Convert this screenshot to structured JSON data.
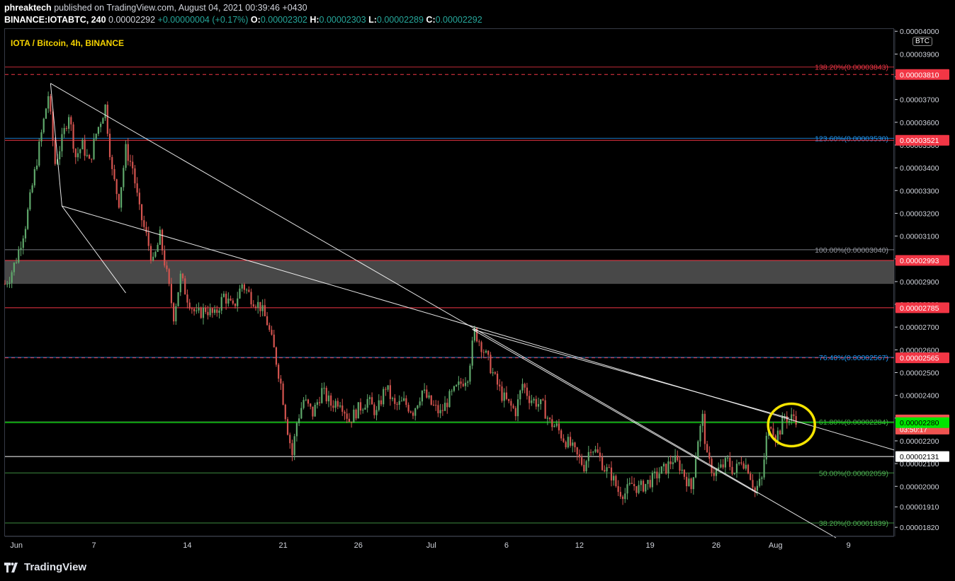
{
  "header": {
    "publisher": "phreaktech",
    "published_text": "published on TradingView.com, August 04, 2021 00:39:46 +0430",
    "ticker": "BINANCE:IOTABTC, 240",
    "last": "0.00002292",
    "change": "+0.00000004 (+0.17%)",
    "o_label": "O:",
    "o": "0.00002302",
    "h_label": "H:",
    "h": "0.00002303",
    "l_label": "L:",
    "l": "0.00002289",
    "c_label": "C:",
    "c": "0.00002292"
  },
  "symbol_title": "IOTA / Bitcoin, 4h, BINANCE",
  "currency_badge": "BTC",
  "footer": {
    "brand": "TradingView"
  },
  "chart_data": {
    "type": "candlestick",
    "y_range": [
      1.78e-05,
      4e-05
    ],
    "y_ticks": [
      "0.00004000",
      "0.00003900",
      "0.00003800",
      "0.00003700",
      "0.00003600",
      "0.00003500",
      "0.00003400",
      "0.00003300",
      "0.00003200",
      "0.00003100",
      "0.00003000",
      "0.00002900",
      "0.00002800",
      "0.00002700",
      "0.00002600",
      "0.00002500",
      "0.00002400",
      "0.00002300",
      "0.00002200",
      "0.00002100",
      "0.00002000",
      "0.00001910",
      "0.00001820"
    ],
    "x_ticks": [
      "Jun",
      "7",
      "14",
      "21",
      "26",
      "Jul",
      "6",
      "12",
      "19",
      "26",
      "Aug",
      "9"
    ],
    "fib_levels": [
      {
        "label": "138.20%(0.00003843)",
        "value": 3.843e-05,
        "color": "#f23645"
      },
      {
        "label": "123.60%(0.00003530)",
        "value": 3.53e-05,
        "color": "#2196f3"
      },
      {
        "label": "100.00%(0.00003040)",
        "value": 3.04e-05,
        "color": "#9598a1"
      },
      {
        "label": "76.40%(0.00002567)",
        "value": 2.567e-05,
        "color": "#2196f3"
      },
      {
        "label": "61.80%(0.00002284)",
        "value": 2.284e-05,
        "color": "#4caf50"
      },
      {
        "label": "50.00%(0.00002059)",
        "value": 2.059e-05,
        "color": "#4caf50"
      },
      {
        "label": "38.20%(0.00001839)",
        "value": 1.839e-05,
        "color": "#4caf50"
      }
    ],
    "price_labels": [
      {
        "text": "0.00003810",
        "value": 3.81e-05,
        "bg": "#f23645",
        "fg": "#ffffff"
      },
      {
        "text": "0.00003521",
        "value": 3.521e-05,
        "bg": "#f23645",
        "fg": "#ffffff"
      },
      {
        "text": "0.00002993",
        "value": 2.993e-05,
        "bg": "#f23645",
        "fg": "#ffffff"
      },
      {
        "text": "0.00002785",
        "value": 2.785e-05,
        "bg": "#f23645",
        "fg": "#ffffff"
      },
      {
        "text": "0.00002565",
        "value": 2.565e-05,
        "bg": "#f23645",
        "fg": "#ffffff"
      },
      {
        "text": "0.00002292",
        "value": 2.292e-05,
        "bg": "#ef5350",
        "fg": "#ffffff",
        "sub": "03:50:17"
      },
      {
        "text": "0.00002280",
        "value": 2.28e-05,
        "bg": "#00e600",
        "fg": "#000000"
      },
      {
        "text": "0.00002131",
        "value": 2.131e-05,
        "bg": "#ffffff",
        "fg": "#000000"
      }
    ],
    "horizontal_lines": [
      {
        "value": 3.81e-05,
        "color": "#f23645",
        "dash": true
      },
      {
        "value": 3.521e-05,
        "color": "#f23645",
        "dash": false
      },
      {
        "value": 2.993e-05,
        "color": "#f23645",
        "dash": false
      },
      {
        "value": 2.785e-05,
        "color": "#f23645",
        "dash": false
      },
      {
        "value": 2.565e-05,
        "color": "#f23645",
        "dash": true
      },
      {
        "value": 2.28e-05,
        "color": "#00e600",
        "dash": false
      },
      {
        "value": 2.131e-05,
        "color": "#ffffff",
        "dash": false
      }
    ],
    "zone": {
      "top": 2.993e-05,
      "bottom": 2.89e-05,
      "color": "#555555"
    },
    "trendlines": [
      {
        "x1": "Jun 3",
        "y1": 3.771e-05,
        "x2": "Aug 5",
        "y2": 1.78e-05,
        "color": "#ffffff"
      },
      {
        "x1": "Jun 3",
        "y1": 3.232e-05,
        "x2": "Aug 9",
        "y2": 2.16e-05,
        "color": "#ffffff"
      }
    ],
    "highlight_circle": {
      "x": "Aug 3",
      "y": 2.27e-05,
      "color": "#f5e400"
    },
    "series_path": [
      {
        "t": 0,
        "p": 2.89e-05
      },
      {
        "t": 2,
        "p": 2.92e-05
      },
      {
        "t": 5,
        "p": 3e-05
      },
      {
        "t": 9,
        "p": 3.15e-05
      },
      {
        "t": 12,
        "p": 3.32e-05
      },
      {
        "t": 16,
        "p": 3.55e-05
      },
      {
        "t": 19,
        "p": 3.72e-05
      },
      {
        "t": 22,
        "p": 3.42e-05
      },
      {
        "t": 25,
        "p": 3.52e-05
      },
      {
        "t": 28,
        "p": 3.64e-05
      },
      {
        "t": 31,
        "p": 3.45e-05
      },
      {
        "t": 34,
        "p": 3.5e-05
      },
      {
        "t": 37,
        "p": 3.42e-05
      },
      {
        "t": 40,
        "p": 3.55e-05
      },
      {
        "t": 44,
        "p": 3.67e-05
      },
      {
        "t": 47,
        "p": 3.38e-05
      },
      {
        "t": 50,
        "p": 3.25e-05
      },
      {
        "t": 53,
        "p": 3.48e-05
      },
      {
        "t": 56,
        "p": 3.4e-05
      },
      {
        "t": 59,
        "p": 3.21e-05
      },
      {
        "t": 62,
        "p": 3.1e-05
      },
      {
        "t": 65,
        "p": 2.98e-05
      },
      {
        "t": 68,
        "p": 3.1e-05
      },
      {
        "t": 71,
        "p": 2.93e-05
      },
      {
        "t": 74,
        "p": 2.75e-05
      },
      {
        "t": 77,
        "p": 2.92e-05
      },
      {
        "t": 80,
        "p": 2.83e-05
      },
      {
        "t": 84,
        "p": 2.75e-05
      },
      {
        "t": 88,
        "p": 2.78e-05
      },
      {
        "t": 92,
        "p": 2.75e-05
      },
      {
        "t": 96,
        "p": 2.84e-05
      },
      {
        "t": 100,
        "p": 2.78e-05
      },
      {
        "t": 104,
        "p": 2.89e-05
      },
      {
        "t": 108,
        "p": 2.83e-05
      },
      {
        "t": 112,
        "p": 2.79e-05
      },
      {
        "t": 115,
        "p": 2.72e-05
      },
      {
        "t": 118,
        "p": 2.6e-05
      },
      {
        "t": 121,
        "p": 2.45e-05
      },
      {
        "t": 124,
        "p": 2.25e-05
      },
      {
        "t": 126,
        "p": 2.14e-05
      },
      {
        "t": 128,
        "p": 2.28e-05
      },
      {
        "t": 131,
        "p": 2.38e-05
      },
      {
        "t": 135,
        "p": 2.32e-05
      },
      {
        "t": 139,
        "p": 2.42e-05
      },
      {
        "t": 143,
        "p": 2.36e-05
      },
      {
        "t": 147,
        "p": 2.38e-05
      },
      {
        "t": 151,
        "p": 2.29e-05
      },
      {
        "t": 155,
        "p": 2.34e-05
      },
      {
        "t": 159,
        "p": 2.38e-05
      },
      {
        "t": 163,
        "p": 2.32e-05
      },
      {
        "t": 167,
        "p": 2.44e-05
      },
      {
        "t": 171,
        "p": 2.35e-05
      },
      {
        "t": 175,
        "p": 2.37e-05
      },
      {
        "t": 179,
        "p": 2.33e-05
      },
      {
        "t": 183,
        "p": 2.42e-05
      },
      {
        "t": 187,
        "p": 2.36e-05
      },
      {
        "t": 191,
        "p": 2.32e-05
      },
      {
        "t": 195,
        "p": 2.39e-05
      },
      {
        "t": 199,
        "p": 2.44e-05
      },
      {
        "t": 203,
        "p": 2.49e-05
      },
      {
        "t": 206,
        "p": 2.68e-05
      },
      {
        "t": 209,
        "p": 2.62e-05
      },
      {
        "t": 212,
        "p": 2.55e-05
      },
      {
        "t": 215,
        "p": 2.47e-05
      },
      {
        "t": 218,
        "p": 2.4e-05
      },
      {
        "t": 221,
        "p": 2.36e-05
      },
      {
        "t": 224,
        "p": 2.33e-05
      },
      {
        "t": 227,
        "p": 2.45e-05
      },
      {
        "t": 230,
        "p": 2.39e-05
      },
      {
        "t": 233,
        "p": 2.37e-05
      },
      {
        "t": 236,
        "p": 2.35e-05
      },
      {
        "t": 239,
        "p": 2.28e-05
      },
      {
        "t": 242,
        "p": 2.26e-05
      },
      {
        "t": 245,
        "p": 2.21e-05
      },
      {
        "t": 248,
        "p": 2.18e-05
      },
      {
        "t": 251,
        "p": 2.13e-05
      },
      {
        "t": 254,
        "p": 2.09e-05
      },
      {
        "t": 257,
        "p": 2.18e-05
      },
      {
        "t": 260,
        "p": 2.14e-05
      },
      {
        "t": 263,
        "p": 2.08e-05
      },
      {
        "t": 266,
        "p": 2.05e-05
      },
      {
        "t": 269,
        "p": 1.98e-05
      },
      {
        "t": 272,
        "p": 1.97e-05
      },
      {
        "t": 275,
        "p": 2.01e-05
      },
      {
        "t": 278,
        "p": 1.99e-05
      },
      {
        "t": 281,
        "p": 2.01e-05
      },
      {
        "t": 284,
        "p": 2.03e-05
      },
      {
        "t": 287,
        "p": 2.06e-05
      },
      {
        "t": 290,
        "p": 2.08e-05
      },
      {
        "t": 293,
        "p": 2.12e-05
      },
      {
        "t": 296,
        "p": 2.09e-05
      },
      {
        "t": 299,
        "p": 2.03e-05
      },
      {
        "t": 301,
        "p": 1.99e-05
      },
      {
        "t": 304,
        "p": 2.21e-05
      },
      {
        "t": 306,
        "p": 2.3e-05
      },
      {
        "t": 308,
        "p": 2.12e-05
      },
      {
        "t": 311,
        "p": 2.06e-05
      },
      {
        "t": 314,
        "p": 2.08e-05
      },
      {
        "t": 317,
        "p": 2.11e-05
      },
      {
        "t": 320,
        "p": 2.06e-05
      },
      {
        "t": 323,
        "p": 2.12e-05
      },
      {
        "t": 326,
        "p": 2.08e-05
      },
      {
        "t": 329,
        "p": 1.98e-05
      },
      {
        "t": 332,
        "p": 2.03e-05
      },
      {
        "t": 334,
        "p": 2.21e-05
      },
      {
        "t": 336,
        "p": 2.28e-05
      },
      {
        "t": 338,
        "p": 2.22e-05
      },
      {
        "t": 340,
        "p": 2.25e-05
      },
      {
        "t": 342,
        "p": 2.31e-05
      },
      {
        "t": 344,
        "p": 2.29e-05
      },
      {
        "t": 346,
        "p": 2.31e-05
      },
      {
        "t": 348,
        "p": 2.29e-05
      }
    ],
    "x_domain": [
      0,
      390
    ],
    "x_tick_positions": [
      5,
      39,
      80,
      122,
      155,
      187,
      220,
      252,
      283,
      312,
      338,
      370
    ]
  }
}
